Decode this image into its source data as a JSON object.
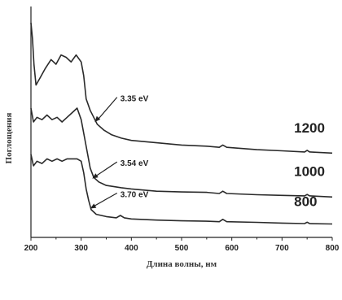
{
  "chart_data": {
    "type": "line",
    "title": "",
    "xlabel": "Длина волны, нм",
    "ylabel": "Поглощения",
    "xlim": [
      200,
      800
    ],
    "ylim": [
      0,
      10
    ],
    "x_ticks": [
      200,
      300,
      400,
      500,
      600,
      700,
      800
    ],
    "y_ticks_shown": false,
    "grid": false,
    "series": [
      {
        "name": "1200",
        "points": [
          [
            200,
            9.3
          ],
          [
            203,
            8.6
          ],
          [
            206,
            7.5
          ],
          [
            210,
            6.6
          ],
          [
            218,
            6.9
          ],
          [
            228,
            7.3
          ],
          [
            240,
            7.7
          ],
          [
            250,
            7.5
          ],
          [
            260,
            7.9
          ],
          [
            270,
            7.8
          ],
          [
            280,
            7.6
          ],
          [
            290,
            7.9
          ],
          [
            300,
            7.6
          ],
          [
            305,
            7.0
          ],
          [
            310,
            6.0
          ],
          [
            318,
            5.5
          ],
          [
            325,
            5.2
          ],
          [
            332,
            4.9
          ],
          [
            345,
            4.65
          ],
          [
            360,
            4.45
          ],
          [
            380,
            4.3
          ],
          [
            400,
            4.2
          ],
          [
            450,
            4.1
          ],
          [
            500,
            4.0
          ],
          [
            550,
            3.95
          ],
          [
            575,
            3.9
          ],
          [
            582,
            4.0
          ],
          [
            590,
            3.9
          ],
          [
            650,
            3.8
          ],
          [
            700,
            3.75
          ],
          [
            745,
            3.7
          ],
          [
            750,
            3.77
          ],
          [
            755,
            3.7
          ],
          [
            800,
            3.65
          ]
        ]
      },
      {
        "name": "1000",
        "points": [
          [
            200,
            5.6
          ],
          [
            205,
            5.0
          ],
          [
            212,
            5.2
          ],
          [
            222,
            5.1
          ],
          [
            232,
            5.3
          ],
          [
            242,
            5.1
          ],
          [
            252,
            5.2
          ],
          [
            262,
            5.0
          ],
          [
            272,
            5.2
          ],
          [
            282,
            5.4
          ],
          [
            292,
            5.6
          ],
          [
            300,
            5.1
          ],
          [
            306,
            4.4
          ],
          [
            312,
            3.7
          ],
          [
            318,
            3.0
          ],
          [
            325,
            2.6
          ],
          [
            335,
            2.4
          ],
          [
            350,
            2.25
          ],
          [
            380,
            2.15
          ],
          [
            400,
            2.1
          ],
          [
            450,
            2.0
          ],
          [
            500,
            1.97
          ],
          [
            550,
            1.95
          ],
          [
            575,
            1.9
          ],
          [
            582,
            2.0
          ],
          [
            590,
            1.9
          ],
          [
            650,
            1.85
          ],
          [
            700,
            1.82
          ],
          [
            745,
            1.8
          ],
          [
            750,
            1.86
          ],
          [
            755,
            1.8
          ],
          [
            800,
            1.75
          ]
        ]
      },
      {
        "name": "800",
        "points": [
          [
            200,
            3.6
          ],
          [
            205,
            3.1
          ],
          [
            212,
            3.3
          ],
          [
            222,
            3.2
          ],
          [
            232,
            3.4
          ],
          [
            242,
            3.3
          ],
          [
            252,
            3.4
          ],
          [
            262,
            3.3
          ],
          [
            272,
            3.4
          ],
          [
            282,
            3.4
          ],
          [
            292,
            3.4
          ],
          [
            300,
            3.3
          ],
          [
            305,
            2.8
          ],
          [
            310,
            2.1
          ],
          [
            315,
            1.6
          ],
          [
            320,
            1.2
          ],
          [
            330,
            1.0
          ],
          [
            350,
            0.9
          ],
          [
            370,
            0.85
          ],
          [
            378,
            0.95
          ],
          [
            386,
            0.85
          ],
          [
            400,
            0.8
          ],
          [
            450,
            0.75
          ],
          [
            500,
            0.72
          ],
          [
            550,
            0.7
          ],
          [
            575,
            0.68
          ],
          [
            582,
            0.78
          ],
          [
            590,
            0.68
          ],
          [
            650,
            0.65
          ],
          [
            700,
            0.62
          ],
          [
            745,
            0.6
          ],
          [
            750,
            0.66
          ],
          [
            755,
            0.6
          ],
          [
            800,
            0.58
          ]
        ]
      }
    ],
    "annotations": [
      {
        "text": "3.35 eV",
        "target": [
          327,
          5.0
        ],
        "label_at": [
          378,
          6.0
        ]
      },
      {
        "text": "3.54 eV",
        "target": [
          322,
          2.55
        ],
        "label_at": [
          378,
          3.2
        ]
      },
      {
        "text": "3.70 eV",
        "target": [
          318,
          1.25
        ],
        "label_at": [
          378,
          1.85
        ]
      }
    ],
    "series_labels": [
      {
        "series": "1200",
        "at": [
          724,
          4.55
        ]
      },
      {
        "series": "1000",
        "at": [
          724,
          2.65
        ]
      },
      {
        "series": "800",
        "at": [
          724,
          1.35
        ]
      }
    ]
  }
}
